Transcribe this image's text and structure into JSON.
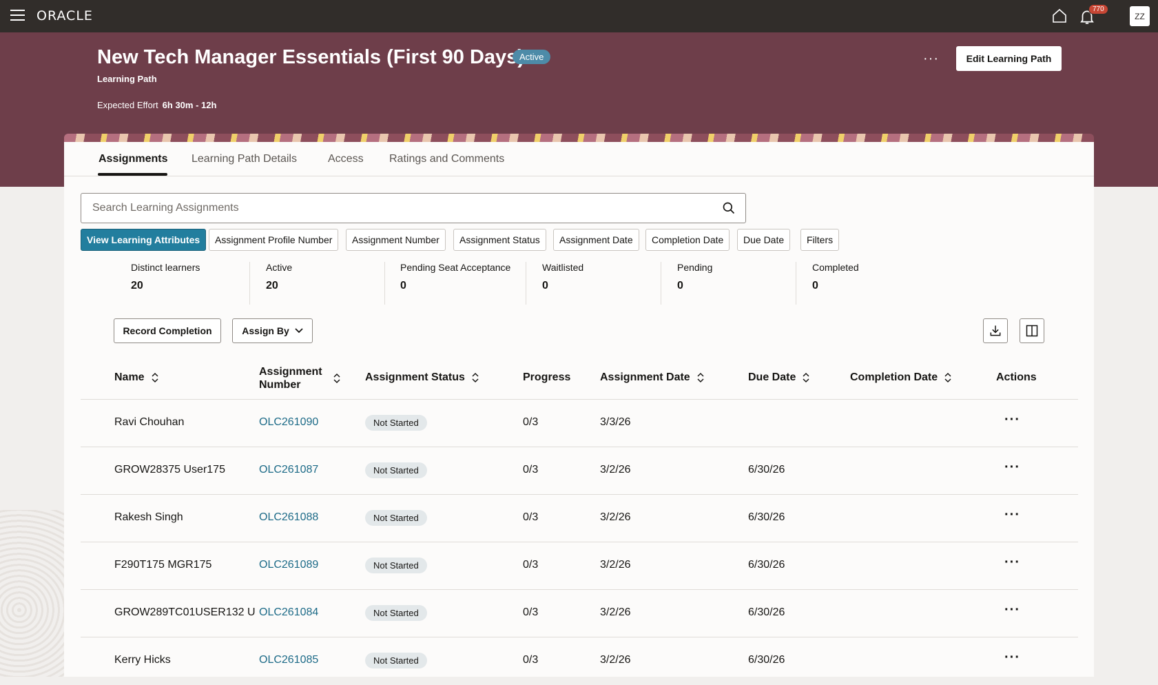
{
  "topbar": {
    "logo": "ORACLE",
    "notification_count": "770",
    "avatar_initials": "ZZ"
  },
  "header": {
    "title": "New Tech Manager Essentials (First 90 Days)",
    "status": "Active",
    "subtitle": "Learning Path",
    "effort_label": "Expected Effort",
    "effort_value": "6h 30m - 12h",
    "more_label": "···",
    "edit_button": "Edit Learning Path"
  },
  "tabs": [
    {
      "label": "Assignments",
      "active": true
    },
    {
      "label": "Learning Path Details",
      "active": false
    },
    {
      "label": "Access",
      "active": false
    },
    {
      "label": "Ratings and Comments",
      "active": false
    }
  ],
  "search": {
    "placeholder": "Search Learning Assignments",
    "value": ""
  },
  "filter_chips": [
    "View Learning Attributes",
    "Assignment Profile Number",
    "Assignment Number",
    "Assignment Status",
    "Assignment Date",
    "Completion Date",
    "Due Date",
    "Filters"
  ],
  "stats": [
    {
      "label": "Distinct learners",
      "value": "20"
    },
    {
      "label": "Active",
      "value": "20"
    },
    {
      "label": "Pending Seat Acceptance",
      "value": "0"
    },
    {
      "label": "Waitlisted",
      "value": "0"
    },
    {
      "label": "Pending",
      "value": "0"
    },
    {
      "label": "Completed",
      "value": "0"
    }
  ],
  "toolbar": {
    "record_completion": "Record Completion",
    "assign_by": "Assign By"
  },
  "table": {
    "columns": {
      "name": "Name",
      "assignment_number_1": "Assignment",
      "assignment_number_2": "Number",
      "assignment_status": "Assignment Status",
      "progress": "Progress",
      "assignment_date": "Assignment Date",
      "due_date": "Due Date",
      "completion_date": "Completion Date",
      "actions": "Actions"
    },
    "rows": [
      {
        "name": "Ravi Chouhan",
        "number": "OLC261090",
        "status": "Not Started",
        "progress": "0/3",
        "assignment_date": "3/3/26",
        "due_date": "",
        "completion_date": "",
        "actions": "···"
      },
      {
        "name": "GROW28375 User175",
        "number": "OLC261087",
        "status": "Not Started",
        "progress": "0/3",
        "assignment_date": "3/2/26",
        "due_date": "6/30/26",
        "completion_date": "",
        "actions": "···"
      },
      {
        "name": "Rakesh Singh",
        "number": "OLC261088",
        "status": "Not Started",
        "progress": "0/3",
        "assignment_date": "3/2/26",
        "due_date": "6/30/26",
        "completion_date": "",
        "actions": "···"
      },
      {
        "name": "F290T175 MGR175",
        "number": "OLC261089",
        "status": "Not Started",
        "progress": "0/3",
        "assignment_date": "3/2/26",
        "due_date": "6/30/26",
        "completion_date": "",
        "actions": "···"
      },
      {
        "name": "GROW289TC01USER132 U",
        "number": "OLC261084",
        "status": "Not Started",
        "progress": "0/3",
        "assignment_date": "3/2/26",
        "due_date": "6/30/26",
        "completion_date": "",
        "actions": "···"
      },
      {
        "name": "Kerry Hicks",
        "number": "OLC261085",
        "status": "Not Started",
        "progress": "0/3",
        "assignment_date": "3/2/26",
        "due_date": "6/30/26",
        "completion_date": "",
        "actions": "···"
      }
    ]
  },
  "colors": {
    "topbar": "#312d2a",
    "header_band": "#6e3e4a",
    "primary_chip": "#227e9e",
    "link": "#1c6a87",
    "status_active": "#4d8ba8",
    "badge_alert": "#c74634"
  }
}
